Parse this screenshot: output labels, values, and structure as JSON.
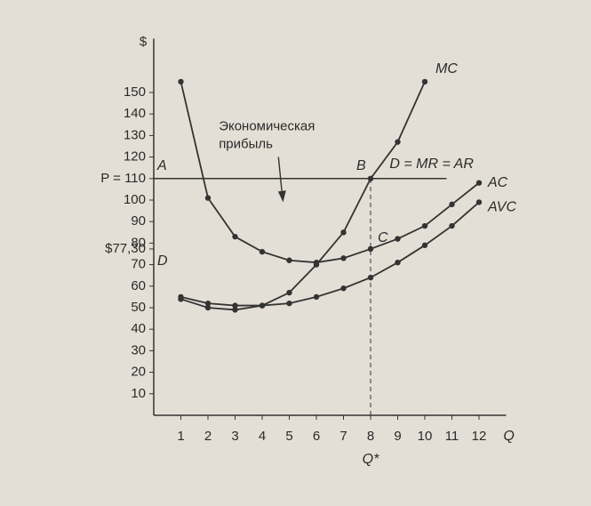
{
  "chart_data": {
    "type": "line",
    "y_label": "$",
    "x_label": "Q",
    "x": [
      1,
      2,
      3,
      4,
      5,
      6,
      7,
      8,
      9,
      10,
      11,
      12
    ],
    "series": [
      {
        "name": "MC",
        "color": "#333333",
        "values": [
          54,
          50,
          49,
          51,
          57,
          70,
          85,
          110,
          127,
          155,
          null,
          null
        ]
      },
      {
        "name": "AC",
        "color": "#333333",
        "values": [
          155,
          101,
          83,
          76,
          72,
          71,
          73,
          77.3,
          82,
          88,
          98,
          108
        ]
      },
      {
        "name": "AVC",
        "color": "#333333",
        "values": [
          55,
          52,
          51,
          51,
          52,
          55,
          59,
          64,
          71,
          79,
          88,
          99
        ]
      }
    ],
    "hline": {
      "value": 110,
      "label": "D = MR = AR"
    },
    "vline": {
      "value": 8,
      "label": "Q*"
    },
    "points": [
      {
        "label": "A",
        "x": 0,
        "y": 110
      },
      {
        "label": "B",
        "x": 8,
        "y": 110
      },
      {
        "label": "C",
        "x": 8,
        "y": 77.3
      },
      {
        "label": "D",
        "x": 0,
        "y": 77.3
      }
    ],
    "annotation": [
      "Экономическая",
      "прибыль"
    ],
    "xlim": [
      0,
      13
    ],
    "ylim": [
      0,
      175
    ],
    "xticks": [
      1,
      2,
      3,
      4,
      5,
      6,
      7,
      8,
      9,
      10,
      11,
      12
    ],
    "yticks": [
      10,
      20,
      30,
      40,
      50,
      60,
      70,
      {
        "value": 77.3,
        "label": "$77,30"
      },
      80,
      90,
      100,
      {
        "value": 110,
        "label": "P = 110"
      },
      120,
      130,
      140,
      150
    ]
  }
}
